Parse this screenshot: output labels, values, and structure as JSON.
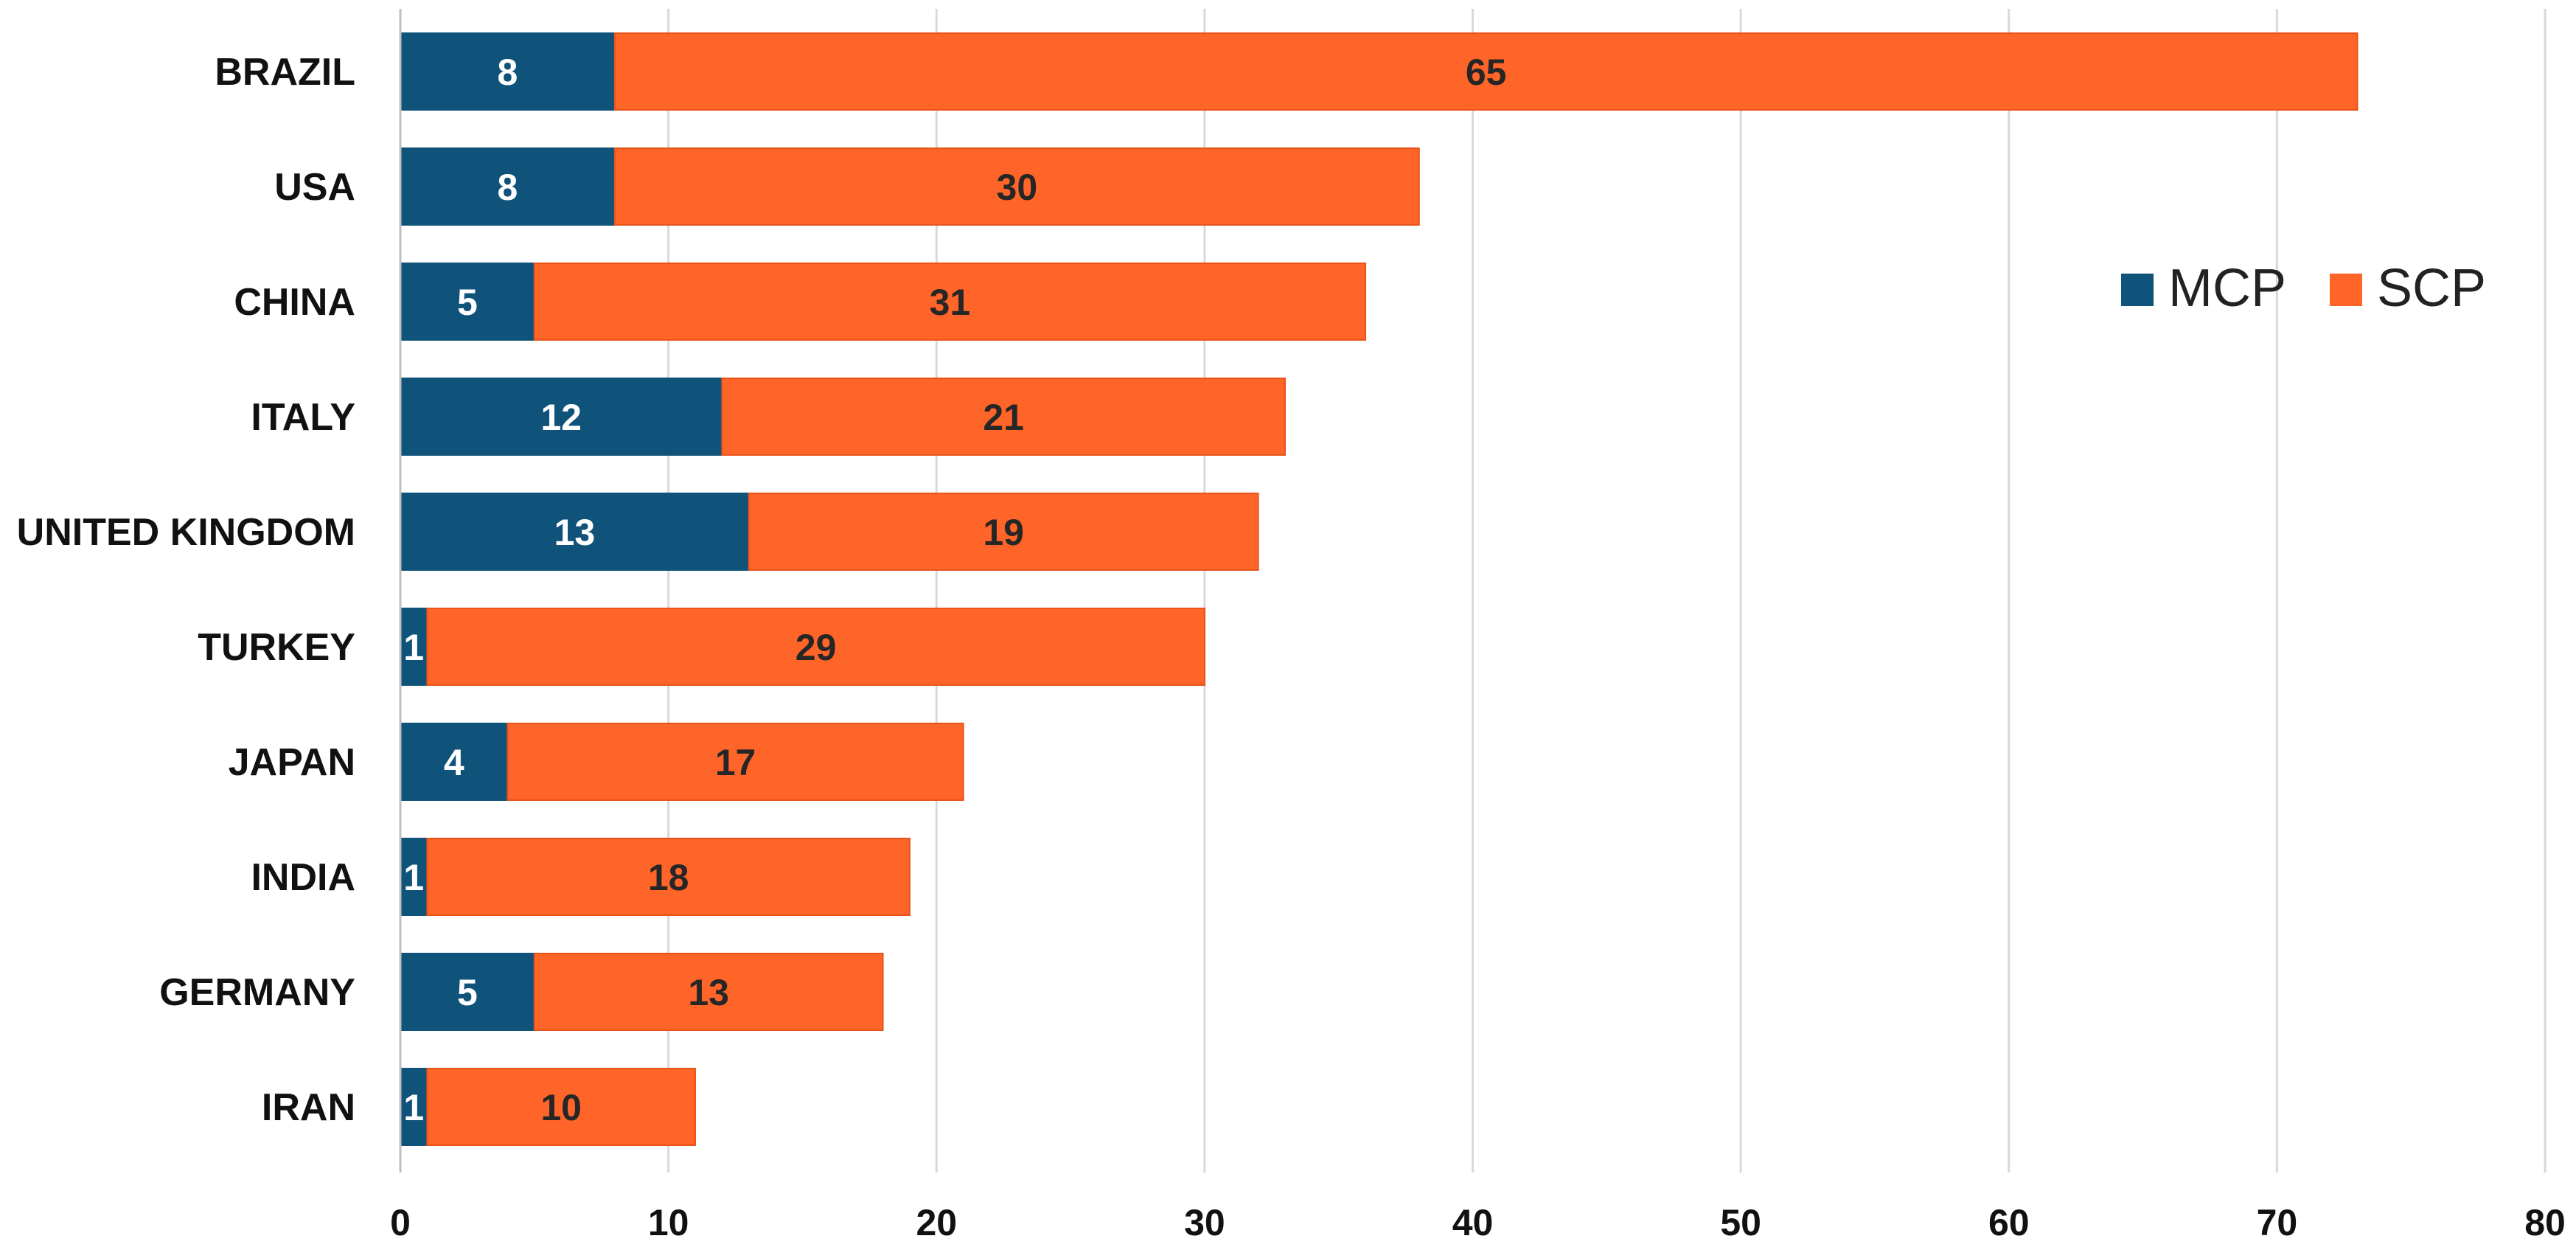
{
  "chart_data": {
    "type": "bar",
    "orientation": "horizontal",
    "stacked": true,
    "categories": [
      "BRAZIL",
      "USA",
      "CHINA",
      "ITALY",
      "UNITED KINGDOM",
      "TURKEY",
      "JAPAN",
      "INDIA",
      "GERMANY",
      "IRAN"
    ],
    "series": [
      {
        "name": "MCP",
        "color": "#0f527a",
        "label_color": "#ffffff",
        "values": [
          8,
          8,
          5,
          12,
          13,
          1,
          4,
          1,
          5,
          1
        ]
      },
      {
        "name": "SCP",
        "color": "#ff6528",
        "label_color": "#262626",
        "values": [
          65,
          30,
          31,
          21,
          19,
          29,
          17,
          18,
          13,
          10
        ]
      }
    ],
    "xlim": [
      0,
      80
    ],
    "xticks": [
      "0",
      "10",
      "20",
      "30",
      "40",
      "50",
      "60",
      "70",
      "80"
    ],
    "grid": "vertical",
    "legend_position": "top-right",
    "title": "",
    "xlabel": "",
    "ylabel": ""
  }
}
